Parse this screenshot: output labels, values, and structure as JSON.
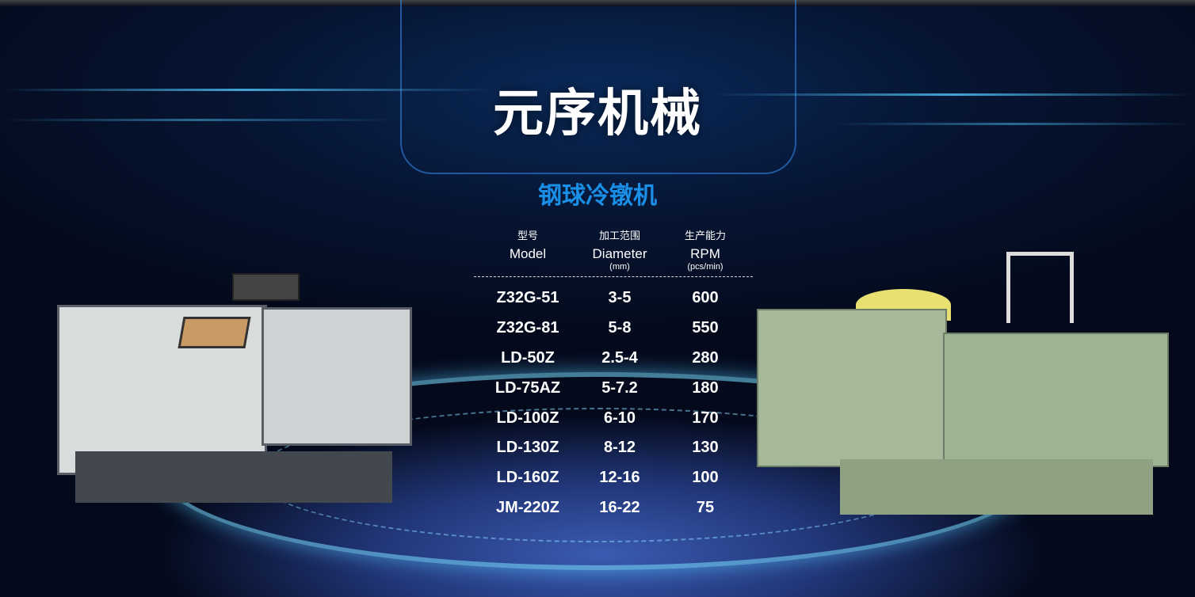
{
  "header": {
    "title": "元序机械"
  },
  "section": {
    "title": "钢球冷镦机"
  },
  "table": {
    "columns": [
      {
        "zh": "型号",
        "en": "Model",
        "unit": ""
      },
      {
        "zh": "加工范围",
        "en": "Diameter",
        "unit": "(mm)"
      },
      {
        "zh": "生产能力",
        "en": "RPM",
        "unit": "(pcs/min)"
      }
    ],
    "rows": [
      [
        "Z32G-51",
        "3-5",
        "600"
      ],
      [
        "Z32G-81",
        "5-8",
        "550"
      ],
      [
        "LD-50Z",
        "2.5-4",
        "280"
      ],
      [
        "LD-75AZ",
        "5-7.2",
        "180"
      ],
      [
        "LD-100Z",
        "6-10",
        "170"
      ],
      [
        "LD-130Z",
        "8-12",
        "130"
      ],
      [
        "LD-160Z",
        "12-16",
        "100"
      ],
      [
        "JM-220Z",
        "16-22",
        "75"
      ]
    ]
  },
  "colors": {
    "accent": "#1a8fe8",
    "background": "#050a1c"
  }
}
